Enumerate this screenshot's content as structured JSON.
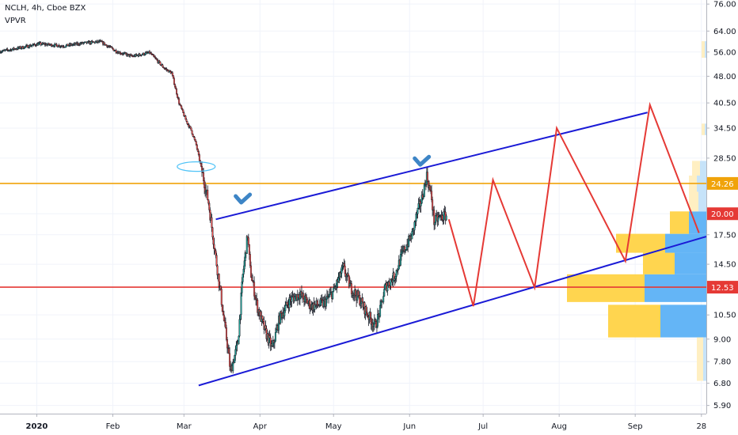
{
  "header": {
    "symbol_line": "NCLH, 4h, Cboe BZX",
    "indicator": "VPVR"
  },
  "colors": {
    "up": "#26a69a",
    "down": "#ef5350",
    "candle": "#131722",
    "channel": "#1a1ad6",
    "resistance": "#f0a30a",
    "support": "#e53935",
    "projection": "#e53935",
    "vpvr_blue": "#64b5f6",
    "vpvr_yellow": "#ffd54f",
    "vpvr_blue_light": "#c6e3f9",
    "vpvr_yellow_light": "#ffefc2",
    "checkmark": "#3d85c6",
    "ellipse": "#4fc3f7"
  },
  "chart_data": {
    "type": "candlestick",
    "y_scale": "log",
    "ylim": [
      5.6,
      78
    ],
    "y_ticks": [
      "76.00",
      "64.00",
      "56.00",
      "48.00",
      "40.50",
      "34.50",
      "28.50",
      "24.26",
      "20.00",
      "17.50",
      "14.50",
      "12.53",
      "10.50",
      "9.00",
      "7.80",
      "6.80",
      "5.90"
    ],
    "y_tick_values": [
      76,
      64,
      56,
      48,
      40.5,
      34.5,
      28.5,
      24.26,
      20,
      17.5,
      14.5,
      12.53,
      10.5,
      9,
      7.8,
      6.8,
      5.9
    ],
    "x_ticks": [
      "2020",
      "Feb",
      "Mar",
      "Apr",
      "May",
      "Jun",
      "Jul",
      "Aug",
      "Sep",
      "28"
    ],
    "x_tick_dates": [
      "2020-01-01",
      "2020-02-01",
      "2020-03-01",
      "2020-04-01",
      "2020-05-01",
      "2020-06-01",
      "2020-07-01",
      "2020-08-01",
      "2020-09-01",
      "2020-09-28"
    ],
    "x_start": "2019-12-17",
    "x_end": "2020-09-30",
    "price_labels": [
      {
        "value": 24.26,
        "text": "24.26",
        "color": "#f0a30a"
      },
      {
        "value": 20.0,
        "text": "20.00",
        "color": "#e53935"
      },
      {
        "value": 12.53,
        "text": "12.53",
        "color": "#e53935"
      }
    ],
    "horizontal_lines": [
      {
        "value": 24.26,
        "color": "#f0a30a"
      },
      {
        "value": 12.53,
        "color": "#e53935"
      }
    ],
    "channel_upper": [
      [
        "2020-03-14",
        19.3
      ],
      [
        "2020-09-06",
        38.1
      ]
    ],
    "channel_lower": [
      [
        "2020-03-07",
        6.7
      ],
      [
        "2020-09-30",
        17.3
      ]
    ],
    "projection": [
      [
        "2020-06-17",
        19.3
      ],
      [
        "2020-06-27",
        11.1
      ],
      [
        "2020-07-05",
        24.8
      ],
      [
        "2020-07-22",
        12.5
      ],
      [
        "2020-07-31",
        34.5
      ],
      [
        "2020-08-28",
        14.8
      ],
      [
        "2020-09-07",
        40.0
      ],
      [
        "2020-09-27",
        17.7
      ]
    ],
    "price_path": [
      [
        "2019-12-17",
        56.2
      ],
      [
        "2019-12-25",
        57.5
      ],
      [
        "2020-01-02",
        59.0
      ],
      [
        "2020-01-12",
        58.2
      ],
      [
        "2020-01-20",
        59.3
      ],
      [
        "2020-01-27",
        59.8
      ],
      [
        "2020-02-03",
        56.0
      ],
      [
        "2020-02-09",
        54.5
      ],
      [
        "2020-02-16",
        55.8
      ],
      [
        "2020-02-22",
        50.5
      ],
      [
        "2020-02-25",
        49.0
      ],
      [
        "2020-02-28",
        40.5
      ],
      [
        "2020-03-02",
        36.0
      ],
      [
        "2020-03-04",
        34.0
      ],
      [
        "2020-03-06",
        31.0
      ],
      [
        "2020-03-09",
        25.0
      ],
      [
        "2020-03-11",
        21.5
      ],
      [
        "2020-03-13",
        17.0
      ],
      [
        "2020-03-16",
        12.0
      ],
      [
        "2020-03-17",
        10.5
      ],
      [
        "2020-03-19",
        8.4
      ],
      [
        "2020-03-20",
        7.3
      ],
      [
        "2020-03-23",
        8.8
      ],
      [
        "2020-03-25",
        13.5
      ],
      [
        "2020-03-27",
        17.5
      ],
      [
        "2020-03-28",
        14.0
      ],
      [
        "2020-03-31",
        11.0
      ],
      [
        "2020-04-03",
        9.5
      ],
      [
        "2020-04-06",
        8.5
      ],
      [
        "2020-04-09",
        10.3
      ],
      [
        "2020-04-13",
        11.5
      ],
      [
        "2020-04-17",
        12.0
      ],
      [
        "2020-04-22",
        11.1
      ],
      [
        "2020-04-27",
        11.3
      ],
      [
        "2020-05-01",
        12.2
      ],
      [
        "2020-05-05",
        14.2
      ],
      [
        "2020-05-08",
        12.5
      ],
      [
        "2020-05-12",
        11.5
      ],
      [
        "2020-05-15",
        10.5
      ],
      [
        "2020-05-18",
        9.8
      ],
      [
        "2020-05-20",
        10.8
      ],
      [
        "2020-05-22",
        12.5
      ],
      [
        "2020-05-26",
        13.5
      ],
      [
        "2020-05-29",
        15.5
      ],
      [
        "2020-06-02",
        17.5
      ],
      [
        "2020-06-04",
        20.0
      ],
      [
        "2020-06-06",
        22.0
      ],
      [
        "2020-06-08",
        25.5
      ],
      [
        "2020-06-10",
        22.0
      ],
      [
        "2020-06-11",
        19.0
      ],
      [
        "2020-06-13",
        19.5
      ],
      [
        "2020-06-16",
        19.8
      ]
    ],
    "vpvr_rows": [
      {
        "lo": 9.1,
        "hi": 11.2,
        "blue": 58,
        "yellow": 66
      },
      {
        "lo": 11.4,
        "hi": 13.6,
        "blue": 78,
        "yellow": 98
      },
      {
        "lo": 13.6,
        "hi": 15.6,
        "blue": 40,
        "yellow": 40
      },
      {
        "lo": 15.6,
        "hi": 17.6,
        "blue": 52,
        "yellow": 62
      },
      {
        "lo": 17.6,
        "hi": 20.3,
        "blue": 22,
        "yellow": 24
      },
      {
        "lo": 20.3,
        "hi": 23.0,
        "blue": 10,
        "yellow": 12
      },
      {
        "lo": 23.0,
        "hi": 25.5,
        "blue": 12,
        "yellow": 10
      },
      {
        "lo": 25.5,
        "hi": 28.0,
        "blue": 8,
        "yellow": 10
      },
      {
        "lo": 33.0,
        "hi": 35.5,
        "blue": 2,
        "yellow": 4
      },
      {
        "lo": 54.0,
        "hi": 60.0,
        "blue": 2,
        "yellow": 4
      },
      {
        "lo": 6.9,
        "hi": 9.1,
        "blue": 4,
        "yellow": 8
      }
    ],
    "checkmarks": [
      [
        "2020-03-25",
        21.7
      ],
      [
        "2020-06-06",
        27.6
      ]
    ],
    "ellipse": [
      "2020-03-06",
      27.0
    ]
  }
}
